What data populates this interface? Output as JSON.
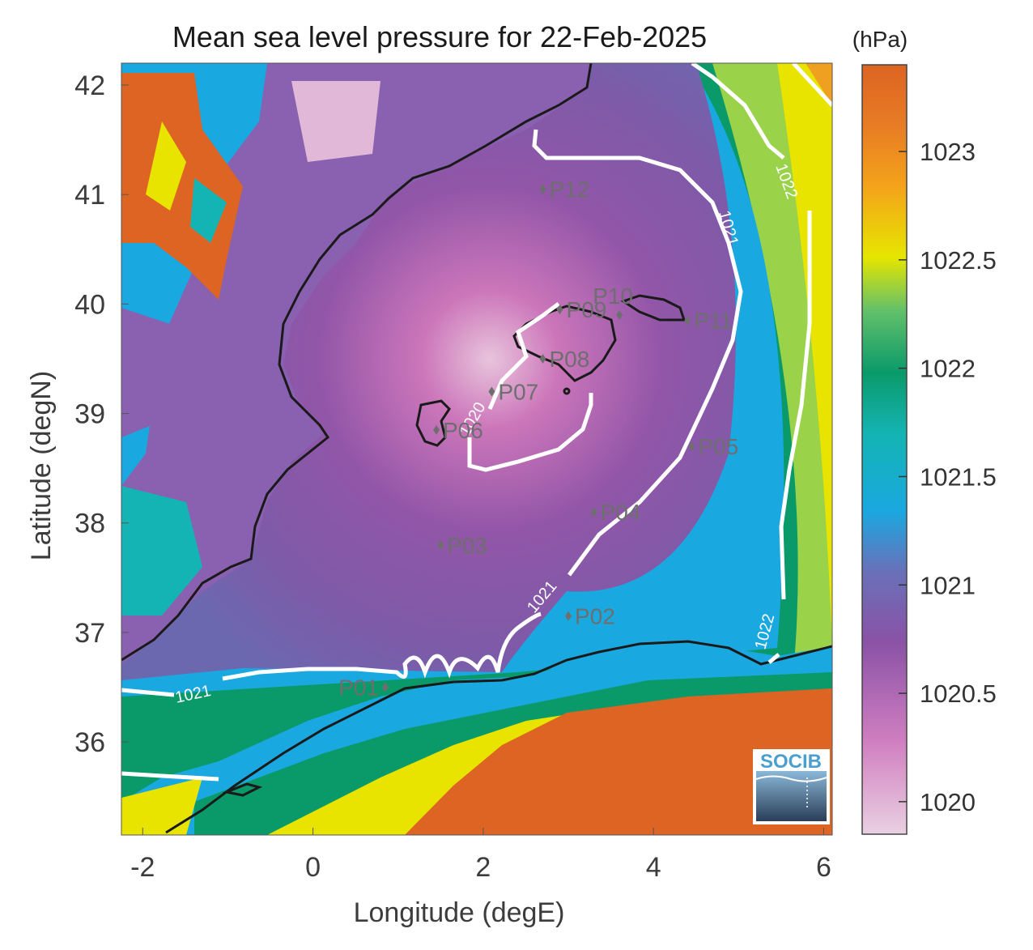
{
  "title": "Mean sea level pressure for 22-Feb-2025",
  "units": "(hPa)",
  "xlabel": "Longitude (degE)",
  "ylabel": "Latitude (degN)",
  "x_ticks": [
    "-2",
    "0",
    "2",
    "4",
    "6"
  ],
  "y_ticks": [
    "42",
    "41",
    "40",
    "39",
    "38",
    "37",
    "36"
  ],
  "colorbar_ticks": [
    "1023",
    "1022.5",
    "1022",
    "1021.5",
    "1021",
    "1020.5",
    "1020"
  ],
  "contour_labels": [
    "1021",
    "1021",
    "1022",
    "1022",
    "1020",
    "1021"
  ],
  "stations": [
    {
      "name": "P01",
      "lon": 0.85,
      "lat": 36.5
    },
    {
      "name": "P02",
      "lon": 3.0,
      "lat": 37.15
    },
    {
      "name": "P03",
      "lon": 1.5,
      "lat": 37.8
    },
    {
      "name": "P04",
      "lon": 3.3,
      "lat": 38.1
    },
    {
      "name": "P05",
      "lon": 4.45,
      "lat": 38.7
    },
    {
      "name": "P06",
      "lon": 1.45,
      "lat": 38.85
    },
    {
      "name": "P07",
      "lon": 2.1,
      "lat": 39.2
    },
    {
      "name": "P08",
      "lon": 2.7,
      "lat": 39.5
    },
    {
      "name": "P09",
      "lon": 2.9,
      "lat": 39.95
    },
    {
      "name": "P10",
      "lon": 3.6,
      "lat": 39.9
    },
    {
      "name": "P11",
      "lon": 4.4,
      "lat": 39.85
    },
    {
      "name": "P12",
      "lon": 2.7,
      "lat": 41.05
    }
  ],
  "logo_text": "SOCIB",
  "colors": {
    "low": "#e8c8dc",
    "mid": "#7a5aa8",
    "blue": "#1aa8e0",
    "green": "#0a9a6a",
    "yellow": "#f5e000",
    "high": "#dd6422",
    "coast": "#1a1a1a",
    "contour": "#ffffff"
  }
}
